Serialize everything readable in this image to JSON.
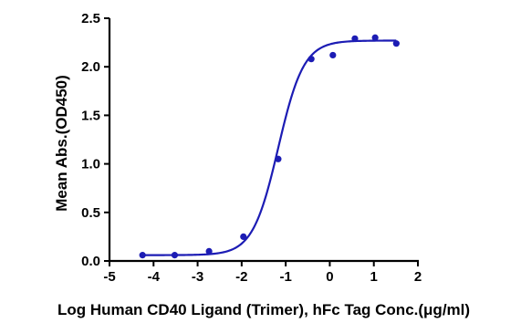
{
  "chart_data": {
    "type": "scatter",
    "xlabel": "Log Human CD40 Ligand (Trimer), hFc Tag Conc.(μg/ml)",
    "ylabel": "Mean Abs.(OD450)",
    "xlim": [
      -5,
      2
    ],
    "ylim": [
      0,
      2.5
    ],
    "x_ticks": [
      -5,
      -4,
      -3,
      -2,
      -1,
      0,
      1,
      2
    ],
    "y_ticks": [
      0.0,
      0.5,
      1.0,
      1.5,
      2.0,
      2.5
    ],
    "x_tick_labels": [
      "-5",
      "-4",
      "-3",
      "-2",
      "-1",
      "0",
      "1",
      "2"
    ],
    "y_tick_labels": [
      "0.0",
      "0.5",
      "1.0",
      "1.5",
      "2.0",
      "2.5"
    ],
    "grid": false,
    "colors": {
      "series": "#1c1cb4",
      "axis": "#000000"
    },
    "series": [
      {
        "x": [
          -4.25,
          -3.52,
          -2.74,
          -1.96,
          -1.17,
          -0.42,
          0.07,
          0.57,
          1.03,
          1.51
        ],
        "y": [
          0.06,
          0.06,
          0.1,
          0.25,
          1.05,
          2.08,
          2.12,
          2.29,
          2.3,
          2.24
        ]
      }
    ],
    "fit_curve": {
      "model": "4PL",
      "bottom": 0.06,
      "top": 2.27,
      "logEC50": -1.17,
      "hill_slope": 1.5,
      "x_range": [
        -4.25,
        1.51
      ]
    }
  }
}
